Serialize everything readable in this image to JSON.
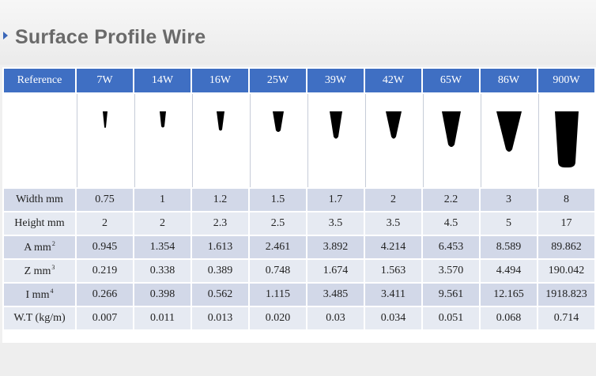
{
  "title": "Surface Profile Wire",
  "table": {
    "reference_label": "Reference",
    "columns": [
      "7W",
      "14W",
      "16W",
      "25W",
      "39W",
      "42W",
      "65W",
      "86W",
      "900W"
    ],
    "rows": [
      {
        "label": "Width mm",
        "sup": "",
        "values": [
          "0.75",
          "1",
          "1.2",
          "1.5",
          "1.7",
          "2",
          "2.2",
          "3",
          "8"
        ]
      },
      {
        "label": "Height mm",
        "sup": "",
        "values": [
          "2",
          "2",
          "2.3",
          "2.5",
          "3.5",
          "3.5",
          "4.5",
          "5",
          "17"
        ]
      },
      {
        "label": "A mm",
        "sup": "2",
        "values": [
          "0.945",
          "1.354",
          "1.613",
          "2.461",
          "3.892",
          "4.214",
          "6.453",
          "8.589",
          "89.862"
        ]
      },
      {
        "label": "Z mm",
        "sup": "3",
        "values": [
          "0.219",
          "0.338",
          "0.389",
          "0.748",
          "1.674",
          "1.563",
          "3.570",
          "4.494",
          "190.042"
        ]
      },
      {
        "label": "I mm",
        "sup": "4",
        "values": [
          "0.266",
          "0.398",
          "0.562",
          "1.115",
          "3.485",
          "3.411",
          "9.561",
          "12.165",
          "1918.823"
        ]
      },
      {
        "label": "W.T (kg/m)",
        "sup": "",
        "values": [
          "0.007",
          "0.011",
          "0.013",
          "0.020",
          "0.03",
          "0.034",
          "0.051",
          "0.068",
          "0.714"
        ]
      }
    ]
  },
  "colors": {
    "header_bg": "#3f6fc3",
    "row_odd": "#d2d8e8",
    "row_even": "#e6eaf2",
    "title_text": "#6a6a6a",
    "profile_fill": "#000000"
  },
  "icons": {
    "title_marker": "chevron-right-icon",
    "profile_shape": "wedge-profile-icon"
  }
}
